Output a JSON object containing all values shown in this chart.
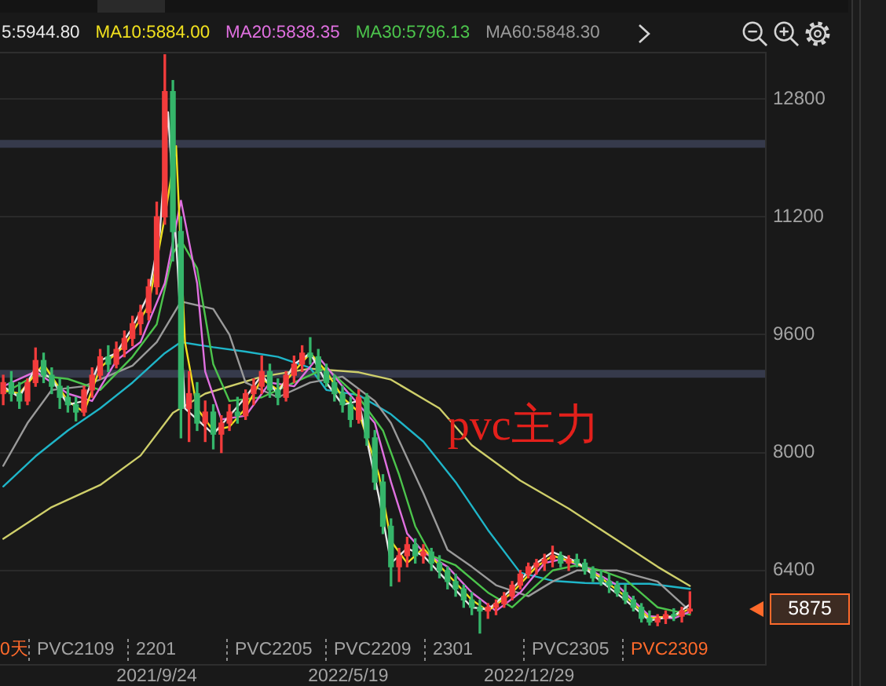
{
  "chart_data": {
    "type": "candlestick",
    "title": "pvc主力",
    "x": [
      "2021-03-18",
      "2021-03-28",
      "2021-04-07",
      "2021-04-17",
      "2021-04-27",
      "2021-05-07",
      "2021-05-17",
      "2021-05-27",
      "2021-06-06",
      "2021-06-16",
      "2021-06-26",
      "2021-07-06",
      "2021-07-16",
      "2021-07-26",
      "2021-08-05",
      "2021-08-15",
      "2021-08-25",
      "2021-09-04",
      "2021-09-14",
      "2021-09-24",
      "2021-10-04",
      "2021-10-14",
      "2021-10-24",
      "2021-11-03",
      "2021-11-13",
      "2021-11-23",
      "2021-12-03",
      "2021-12-13",
      "2021-12-23",
      "2022-01-02",
      "2022-01-12",
      "2022-01-22",
      "2022-02-01",
      "2022-02-11",
      "2022-02-21",
      "2022-03-03",
      "2022-03-13",
      "2022-03-23",
      "2022-04-02",
      "2022-04-12",
      "2022-04-22",
      "2022-05-02",
      "2022-05-12",
      "2022-05-22",
      "2022-06-01",
      "2022-06-11",
      "2022-06-21",
      "2022-07-01",
      "2022-07-11",
      "2022-07-21",
      "2022-07-31",
      "2022-08-10",
      "2022-08-20",
      "2022-08-30",
      "2022-09-09",
      "2022-09-19",
      "2022-09-29",
      "2022-10-09",
      "2022-10-19",
      "2022-10-29",
      "2022-11-08",
      "2022-11-18",
      "2022-11-28",
      "2022-12-08",
      "2022-12-18",
      "2022-12-28",
      "2023-01-07",
      "2023-01-17",
      "2023-01-27",
      "2023-02-06",
      "2023-02-16",
      "2023-02-26",
      "2023-03-08",
      "2023-03-18",
      "2023-03-28",
      "2023-04-07",
      "2023-04-17",
      "2023-04-27",
      "2023-05-07",
      "2023-05-17",
      "2023-05-27",
      "2023-06-06",
      "2023-06-16",
      "2023-06-26",
      "2023-07-06",
      "2023-07-16"
    ],
    "ohlc": [
      [
        8800,
        9050,
        8650,
        8950
      ],
      [
        8950,
        9100,
        8700,
        8800
      ],
      [
        8800,
        8950,
        8600,
        8700
      ],
      [
        8700,
        9000,
        8650,
        8950
      ],
      [
        8950,
        9420,
        8900,
        9250
      ],
      [
        9250,
        9350,
        8950,
        9050
      ],
      [
        9050,
        9150,
        8800,
        8900
      ],
      [
        8900,
        9000,
        8600,
        8750
      ],
      [
        8750,
        8900,
        8550,
        8650
      ],
      [
        8650,
        8750,
        8430,
        8550
      ],
      [
        8550,
        8900,
        8500,
        8850
      ],
      [
        8850,
        9150,
        8750,
        9050
      ],
      [
        9050,
        9400,
        9000,
        9300
      ],
      [
        9300,
        9450,
        9100,
        9200
      ],
      [
        9200,
        9500,
        9150,
        9400
      ],
      [
        9400,
        9650,
        9300,
        9550
      ],
      [
        9550,
        9850,
        9450,
        9750
      ],
      [
        9750,
        10000,
        9600,
        9900
      ],
      [
        9900,
        10350,
        9800,
        10250
      ],
      [
        10250,
        11400,
        10150,
        11200
      ],
      [
        11200,
        13400,
        11100,
        12900
      ],
      [
        12900,
        13050,
        10600,
        11000
      ],
      [
        11000,
        11200,
        8200,
        8600
      ],
      [
        8600,
        9100,
        8150,
        8800
      ],
      [
        8800,
        8950,
        8300,
        8400
      ],
      [
        8400,
        8700,
        8150,
        8550
      ],
      [
        8550,
        8650,
        8050,
        8250
      ],
      [
        8250,
        8500,
        8000,
        8400
      ],
      [
        8400,
        8650,
        8300,
        8550
      ],
      [
        8550,
        8750,
        8400,
        8500
      ],
      [
        8500,
        8850,
        8450,
        8800
      ],
      [
        8800,
        9000,
        8650,
        8900
      ],
      [
        8900,
        9310,
        8800,
        9100
      ],
      [
        9100,
        9200,
        8750,
        8850
      ],
      [
        8850,
        9000,
        8650,
        8750
      ],
      [
        8750,
        9100,
        8700,
        9050
      ],
      [
        9050,
        9310,
        8950,
        9200
      ],
      [
        9200,
        9450,
        9100,
        9350
      ],
      [
        9350,
        9560,
        9200,
        9300
      ],
      [
        9300,
        9400,
        9000,
        9100
      ],
      [
        9100,
        9200,
        8900,
        8950
      ],
      [
        8950,
        9050,
        8700,
        8800
      ],
      [
        8800,
        8900,
        8550,
        8650
      ],
      [
        8650,
        8750,
        8350,
        8450
      ],
      [
        8450,
        8850,
        8400,
        8750
      ],
      [
        8750,
        8800,
        8100,
        8200
      ],
      [
        8200,
        8300,
        7500,
        7600
      ],
      [
        7600,
        7700,
        6900,
        7000
      ],
      [
        7000,
        7100,
        6190,
        6450
      ],
      [
        6450,
        6700,
        6250,
        6600
      ],
      [
        6600,
        6850,
        6450,
        6750
      ],
      [
        6750,
        6830,
        6500,
        6600
      ],
      [
        6600,
        6750,
        6500,
        6650
      ],
      [
        6650,
        6700,
        6400,
        6500
      ],
      [
        6500,
        6600,
        6300,
        6400
      ],
      [
        6400,
        6450,
        6150,
        6250
      ],
      [
        6250,
        6350,
        6050,
        6150
      ],
      [
        6150,
        6200,
        5900,
        6000
      ],
      [
        6000,
        6100,
        5800,
        5900
      ],
      [
        5900,
        6000,
        5550,
        5850
      ],
      [
        5850,
        5950,
        5750,
        5900
      ],
      [
        5900,
        6000,
        5800,
        5950
      ],
      [
        5950,
        6100,
        5900,
        6050
      ],
      [
        6050,
        6250,
        6000,
        6200
      ],
      [
        6200,
        6400,
        6150,
        6350
      ],
      [
        6350,
        6500,
        6300,
        6450
      ],
      [
        6450,
        6550,
        6350,
        6500
      ],
      [
        6500,
        6620,
        6400,
        6550
      ],
      [
        6550,
        6730,
        6450,
        6600
      ],
      [
        6600,
        6650,
        6450,
        6500
      ],
      [
        6500,
        6600,
        6400,
        6550
      ],
      [
        6550,
        6620,
        6450,
        6500
      ],
      [
        6500,
        6550,
        6350,
        6400
      ],
      [
        6400,
        6450,
        6250,
        6300
      ],
      [
        6300,
        6400,
        6200,
        6250
      ],
      [
        6250,
        6350,
        6100,
        6200
      ],
      [
        6200,
        6250,
        6050,
        6100
      ],
      [
        6100,
        6200,
        5950,
        6000
      ],
      [
        6000,
        6050,
        5850,
        5900
      ],
      [
        5900,
        5950,
        5700,
        5750
      ],
      [
        5750,
        5850,
        5660,
        5700
      ],
      [
        5700,
        5800,
        5650,
        5750
      ],
      [
        5750,
        5850,
        5680,
        5800
      ],
      [
        5800,
        5880,
        5720,
        5780
      ],
      [
        5780,
        5900,
        5700,
        5850
      ],
      [
        5850,
        6110,
        5820,
        5875
      ]
    ],
    "colors": [
      "#f23c3c",
      "#35b56a",
      "#35b56a",
      "#f23c3c",
      "#f23c3c",
      "#35b56a",
      "#35b56a",
      "#35b56a",
      "#35b56a",
      "#35b56a",
      "#f23c3c",
      "#f23c3c",
      "#f23c3c",
      "#35b56a",
      "#f23c3c",
      "#f23c3c",
      "#f23c3c",
      "#f23c3c",
      "#f23c3c",
      "#f23c3c",
      "#f23c3c",
      "#35b56a",
      "#35b56a",
      "#f23c3c",
      "#35b56a",
      "#f23c3c",
      "#35b56a",
      "#f23c3c",
      "#f23c3c",
      "#35b56a",
      "#f23c3c",
      "#f23c3c",
      "#f23c3c",
      "#35b56a",
      "#35b56a",
      "#f23c3c",
      "#f23c3c",
      "#f23c3c",
      "#35b56a",
      "#35b56a",
      "#35b56a",
      "#35b56a",
      "#35b56a",
      "#35b56a",
      "#f23c3c",
      "#35b56a",
      "#35b56a",
      "#35b56a",
      "#35b56a",
      "#f23c3c",
      "#f23c3c",
      "#35b56a",
      "#f23c3c",
      "#35b56a",
      "#35b56a",
      "#35b56a",
      "#35b56a",
      "#35b56a",
      "#35b56a",
      "#35b56a",
      "#f23c3c",
      "#f23c3c",
      "#f23c3c",
      "#f23c3c",
      "#f23c3c",
      "#f23c3c",
      "#f23c3c",
      "#f23c3c",
      "#f23c3c",
      "#35b56a",
      "#f23c3c",
      "#35b56a",
      "#35b56a",
      "#35b56a",
      "#35b56a",
      "#35b56a",
      "#35b56a",
      "#35b56a",
      "#35b56a",
      "#35b56a",
      "#35b56a",
      "#f23c3c",
      "#f23c3c",
      "#35b56a",
      "#f23c3c",
      "#f23c3c"
    ],
    "series": [
      {
        "name": "5:5944.80",
        "type": "line",
        "color": "#e8e8e8",
        "x": [
          "2021-03-18",
          "2021-04-07",
          "2021-04-27",
          "2021-05-17",
          "2021-06-06",
          "2021-06-26",
          "2021-07-16",
          "2021-08-05",
          "2021-08-25",
          "2021-09-14",
          "2021-09-28",
          "2021-10-08",
          "2021-10-20",
          "2021-10-29",
          "2021-11-13",
          "2021-12-03",
          "2021-12-23",
          "2022-01-12",
          "2022-02-01",
          "2022-02-21",
          "2022-03-13",
          "2022-04-02",
          "2022-04-22",
          "2022-05-12",
          "2022-06-01",
          "2022-06-26",
          "2022-07-11",
          "2022-07-31",
          "2022-08-20",
          "2022-09-19",
          "2022-10-19",
          "2022-11-08",
          "2022-12-08",
          "2023-01-07",
          "2023-01-27",
          "2023-02-26",
          "2023-03-28",
          "2023-04-27",
          "2023-05-27",
          "2023-06-26",
          "2023-07-16"
        ],
        "values": [
          8900,
          8750,
          9150,
          9000,
          8650,
          8700,
          9250,
          9350,
          9700,
          10150,
          11000,
          12620,
          10500,
          8600,
          8450,
          8250,
          8500,
          8750,
          9050,
          8800,
          9200,
          9350,
          8950,
          8650,
          8700,
          7400,
          6500,
          6700,
          6600,
          6250,
          5900,
          5870,
          6150,
          6500,
          6650,
          6520,
          6250,
          6000,
          5720,
          5780,
          5940
        ]
      },
      {
        "name": "MA10:5884.00",
        "type": "line",
        "color": "#f0e01e",
        "x": [
          "2021-03-18",
          "2021-04-07",
          "2021-05-07",
          "2021-06-06",
          "2021-06-26",
          "2021-07-16",
          "2021-08-15",
          "2021-09-14",
          "2021-10-04",
          "2021-10-18",
          "2021-10-29",
          "2021-11-13",
          "2021-12-03",
          "2021-12-23",
          "2022-01-12",
          "2022-02-01",
          "2022-02-21",
          "2022-03-13",
          "2022-04-02",
          "2022-04-22",
          "2022-05-12",
          "2022-06-01",
          "2022-06-26",
          "2022-07-11",
          "2022-07-31",
          "2022-08-20",
          "2022-09-19",
          "2022-10-19",
          "2022-11-08",
          "2022-12-08",
          "2023-01-07",
          "2023-01-27",
          "2023-02-26",
          "2023-03-28",
          "2023-04-27",
          "2023-05-27",
          "2023-06-26",
          "2023-07-16"
        ],
        "values": [
          8850,
          8800,
          9200,
          8700,
          8550,
          9150,
          9450,
          10000,
          11200,
          12160,
          9500,
          8600,
          8300,
          8350,
          8600,
          9000,
          8850,
          9100,
          9350,
          9100,
          8750,
          8550,
          7700,
          6800,
          6500,
          6700,
          6350,
          6000,
          5850,
          6100,
          6450,
          6600,
          6500,
          6300,
          6050,
          5750,
          5780,
          5880
        ]
      },
      {
        "name": "MA20:5838.35",
        "type": "line",
        "color": "#e070e0",
        "x": [
          "2021-03-18",
          "2021-04-27",
          "2021-06-06",
          "2021-07-06",
          "2021-08-05",
          "2021-09-04",
          "2021-10-04",
          "2021-10-24",
          "2021-11-13",
          "2021-11-23",
          "2021-12-13",
          "2022-01-12",
          "2022-02-11",
          "2022-03-13",
          "2022-04-12",
          "2022-05-12",
          "2022-06-21",
          "2022-07-11",
          "2022-07-31",
          "2022-08-20",
          "2022-09-19",
          "2022-10-19",
          "2022-11-18",
          "2022-12-18",
          "2023-01-17",
          "2023-02-06",
          "2023-03-08",
          "2023-04-17",
          "2023-05-27",
          "2023-06-26",
          "2023-07-16"
        ],
        "values": [
          8900,
          9100,
          8800,
          8700,
          9250,
          9500,
          10300,
          11420,
          10300,
          9100,
          8450,
          8500,
          8950,
          8900,
          9300,
          8900,
          8400,
          7600,
          6900,
          6650,
          6450,
          6100,
          5850,
          6100,
          6500,
          6550,
          6450,
          6200,
          5780,
          5750,
          5840
        ]
      },
      {
        "name": "MA30:5796.13",
        "type": "line",
        "color": "#4cc44c",
        "x": [
          "2021-03-18",
          "2021-04-27",
          "2021-06-06",
          "2021-07-16",
          "2021-08-25",
          "2021-09-24",
          "2021-10-14",
          "2021-10-24",
          "2021-11-13",
          "2021-12-03",
          "2021-12-23",
          "2022-02-01",
          "2022-03-13",
          "2022-04-22",
          "2022-06-01",
          "2022-07-01",
          "2022-07-21",
          "2022-08-10",
          "2022-08-30",
          "2022-09-29",
          "2022-11-08",
          "2022-12-08",
          "2023-01-07",
          "2023-01-27",
          "2023-02-26",
          "2023-03-28",
          "2023-04-27",
          "2023-06-06",
          "2023-07-16"
        ],
        "values": [
          8800,
          9050,
          9000,
          8850,
          9300,
          9740,
          10700,
          10880,
          10500,
          9200,
          8700,
          8750,
          8950,
          9150,
          8750,
          8300,
          7700,
          7000,
          6600,
          6470,
          6100,
          5900,
          6200,
          6400,
          6470,
          6400,
          6280,
          5900,
          5800
        ]
      },
      {
        "name": "MA60:5848.30",
        "type": "line",
        "color": "#9a9a9a",
        "x": [
          "2021-03-18",
          "2021-04-17",
          "2021-05-17",
          "2021-06-26",
          "2021-08-25",
          "2021-09-24",
          "2021-10-24",
          "2021-12-03",
          "2021-12-23",
          "2022-01-12",
          "2022-02-21",
          "2022-04-02",
          "2022-05-12",
          "2022-06-21",
          "2022-07-11",
          "2022-08-20",
          "2022-09-19",
          "2022-10-19",
          "2022-11-18",
          "2022-12-28",
          "2023-01-27",
          "2023-02-26",
          "2023-04-17",
          "2023-06-06",
          "2023-07-16"
        ],
        "values": [
          7820,
          8400,
          8850,
          8900,
          9180,
          9500,
          10050,
          9950,
          9600,
          8950,
          8750,
          8950,
          9030,
          8700,
          8400,
          7450,
          6680,
          6450,
          6200,
          6050,
          6250,
          6400,
          6400,
          6250,
          5850
        ]
      },
      {
        "type": "line",
        "color": "#1fb5c8",
        "x": [
          "2021-03-18",
          "2021-04-27",
          "2021-06-06",
          "2021-07-16",
          "2021-08-25",
          "2021-10-04",
          "2021-10-24",
          "2021-12-03",
          "2022-01-12",
          "2022-02-21",
          "2022-04-02",
          "2022-04-22",
          "2022-06-01",
          "2022-07-11",
          "2022-08-20",
          "2022-09-29",
          "2022-11-08",
          "2022-12-18",
          "2023-01-27",
          "2023-03-08",
          "2023-04-17",
          "2023-05-27",
          "2023-07-16"
        ],
        "values": [
          7540,
          7950,
          8300,
          8600,
          8950,
          9350,
          9500,
          9430,
          9370,
          9300,
          9150,
          8850,
          8780,
          8520,
          8150,
          7600,
          6950,
          6370,
          6260,
          6230,
          6220,
          6220,
          6150
        ]
      },
      {
        "type": "line",
        "color": "#cfcf6a",
        "x": [
          "2021-03-18",
          "2021-05-17",
          "2021-07-16",
          "2021-09-04",
          "2021-10-14",
          "2021-11-23",
          "2022-02-01",
          "2022-04-02",
          "2022-06-01",
          "2022-07-11",
          "2022-09-09",
          "2022-10-19",
          "2022-12-18",
          "2023-02-16",
          "2023-04-17",
          "2023-06-06",
          "2023-07-16"
        ],
        "values": [
          6830,
          7260,
          7560,
          7960,
          8540,
          8800,
          9030,
          9140,
          9090,
          8990,
          8600,
          8100,
          7620,
          7240,
          6810,
          6450,
          6190
        ]
      }
    ],
    "xlim": [
      "2021-03-14",
      "2023-10-17"
    ],
    "xticks": [
      {
        "value": "2021-09-24",
        "label": "2021/9/24"
      },
      {
        "value": "2022-05-19",
        "label": "2022/5/19"
      },
      {
        "value": "2022-12-29",
        "label": "2022/12/29"
      }
    ],
    "ylim": [
      5130,
      13440
    ],
    "yticks": [
      6400,
      8000,
      9600,
      11200,
      12800
    ],
    "grid": "y",
    "legend": "top left",
    "ref_lines": [
      {
        "axis": "y",
        "value": 12190,
        "color": "#363a4b"
      },
      {
        "axis": "y",
        "value": 9070,
        "color": "#363a4b"
      }
    ],
    "annotations": [
      "0天",
      "PVC2109",
      "2201",
      "PVC2205",
      "PVC2209",
      "2301",
      "PVC2305",
      "PVC2309",
      "5875"
    ]
  }
}
